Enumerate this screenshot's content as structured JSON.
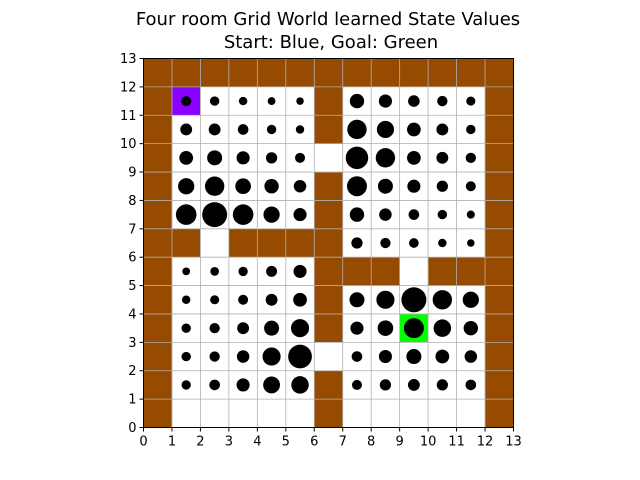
{
  "chart_data": {
    "type": "heatmap",
    "title_line1": "Four room Grid World learned State Values",
    "title_line2": "Start: Blue, Goal: Green",
    "xlim": [
      0,
      13
    ],
    "ylim": [
      0,
      13
    ],
    "xticks": [
      "0",
      "1",
      "2",
      "3",
      "4",
      "5",
      "6",
      "7",
      "8",
      "9",
      "10",
      "11",
      "12",
      "13"
    ],
    "yticks": [
      "0",
      "1",
      "2",
      "3",
      "4",
      "5",
      "6",
      "7",
      "8",
      "9",
      "10",
      "11",
      "12",
      "13"
    ],
    "grid": true,
    "colors": {
      "wall": "#964B00",
      "open": "#ffffff",
      "start": "#8B00FF",
      "goal": "#00FF00",
      "grid": "#b0b0b0",
      "value_marker": "#000000"
    },
    "start_cell": [
      1,
      11
    ],
    "goal_cell": [
      9,
      3
    ],
    "open_cells": [
      [
        1,
        11
      ],
      [
        2,
        11
      ],
      [
        3,
        11
      ],
      [
        4,
        11
      ],
      [
        5,
        11
      ],
      [
        7,
        11
      ],
      [
        8,
        11
      ],
      [
        9,
        11
      ],
      [
        10,
        11
      ],
      [
        11,
        11
      ],
      [
        1,
        10
      ],
      [
        2,
        10
      ],
      [
        3,
        10
      ],
      [
        4,
        10
      ],
      [
        5,
        10
      ],
      [
        7,
        10
      ],
      [
        8,
        10
      ],
      [
        9,
        10
      ],
      [
        10,
        10
      ],
      [
        11,
        10
      ],
      [
        1,
        9
      ],
      [
        2,
        9
      ],
      [
        3,
        9
      ],
      [
        4,
        9
      ],
      [
        5,
        9
      ],
      [
        6,
        9
      ],
      [
        7,
        9
      ],
      [
        8,
        9
      ],
      [
        9,
        9
      ],
      [
        10,
        9
      ],
      [
        11,
        9
      ],
      [
        1,
        8
      ],
      [
        2,
        8
      ],
      [
        3,
        8
      ],
      [
        4,
        8
      ],
      [
        5,
        8
      ],
      [
        7,
        8
      ],
      [
        8,
        8
      ],
      [
        9,
        8
      ],
      [
        10,
        8
      ],
      [
        11,
        8
      ],
      [
        1,
        7
      ],
      [
        2,
        7
      ],
      [
        3,
        7
      ],
      [
        4,
        7
      ],
      [
        5,
        7
      ],
      [
        7,
        7
      ],
      [
        8,
        7
      ],
      [
        9,
        7
      ],
      [
        10,
        7
      ],
      [
        11,
        7
      ],
      [
        7,
        6
      ],
      [
        8,
        6
      ],
      [
        9,
        6
      ],
      [
        10,
        6
      ],
      [
        11,
        6
      ],
      [
        2,
        6
      ],
      [
        1,
        5
      ],
      [
        2,
        5
      ],
      [
        3,
        5
      ],
      [
        4,
        5
      ],
      [
        5,
        5
      ],
      [
        9,
        5
      ],
      [
        1,
        4
      ],
      [
        2,
        4
      ],
      [
        3,
        4
      ],
      [
        4,
        4
      ],
      [
        5,
        4
      ],
      [
        7,
        4
      ],
      [
        8,
        4
      ],
      [
        9,
        4
      ],
      [
        10,
        4
      ],
      [
        11,
        4
      ],
      [
        1,
        3
      ],
      [
        2,
        3
      ],
      [
        3,
        3
      ],
      [
        4,
        3
      ],
      [
        5,
        3
      ],
      [
        7,
        3
      ],
      [
        8,
        3
      ],
      [
        9,
        3
      ],
      [
        10,
        3
      ],
      [
        11,
        3
      ],
      [
        1,
        2
      ],
      [
        2,
        2
      ],
      [
        3,
        2
      ],
      [
        4,
        2
      ],
      [
        5,
        2
      ],
      [
        6,
        2
      ],
      [
        7,
        2
      ],
      [
        8,
        2
      ],
      [
        9,
        2
      ],
      [
        10,
        2
      ],
      [
        11,
        2
      ],
      [
        1,
        1
      ],
      [
        2,
        1
      ],
      [
        3,
        1
      ],
      [
        4,
        1
      ],
      [
        5,
        1
      ],
      [
        7,
        1
      ],
      [
        8,
        1
      ],
      [
        9,
        1
      ],
      [
        10,
        1
      ],
      [
        11,
        1
      ],
      [
        1,
        0
      ],
      [
        2,
        0
      ],
      [
        3,
        0
      ],
      [
        4,
        0
      ],
      [
        5,
        0
      ],
      [
        7,
        0
      ],
      [
        8,
        0
      ],
      [
        9,
        0
      ],
      [
        10,
        0
      ],
      [
        11,
        0
      ]
    ],
    "state_values": [
      {
        "x": 1.5,
        "y": 11.5,
        "v": 0.32
      },
      {
        "x": 2.5,
        "y": 11.5,
        "v": 0.3
      },
      {
        "x": 3.5,
        "y": 11.5,
        "v": 0.27
      },
      {
        "x": 4.5,
        "y": 11.5,
        "v": 0.25
      },
      {
        "x": 5.5,
        "y": 11.5,
        "v": 0.24
      },
      {
        "x": 7.5,
        "y": 11.5,
        "v": 0.46
      },
      {
        "x": 8.5,
        "y": 11.5,
        "v": 0.42
      },
      {
        "x": 9.5,
        "y": 11.5,
        "v": 0.37
      },
      {
        "x": 10.5,
        "y": 11.5,
        "v": 0.33
      },
      {
        "x": 11.5,
        "y": 11.5,
        "v": 0.29
      },
      {
        "x": 1.5,
        "y": 10.5,
        "v": 0.38
      },
      {
        "x": 2.5,
        "y": 10.5,
        "v": 0.38
      },
      {
        "x": 3.5,
        "y": 10.5,
        "v": 0.34
      },
      {
        "x": 4.5,
        "y": 10.5,
        "v": 0.3
      },
      {
        "x": 5.5,
        "y": 10.5,
        "v": 0.27
      },
      {
        "x": 7.5,
        "y": 10.5,
        "v": 0.62
      },
      {
        "x": 8.5,
        "y": 10.5,
        "v": 0.55
      },
      {
        "x": 9.5,
        "y": 10.5,
        "v": 0.44
      },
      {
        "x": 10.5,
        "y": 10.5,
        "v": 0.38
      },
      {
        "x": 11.5,
        "y": 10.5,
        "v": 0.3
      },
      {
        "x": 1.5,
        "y": 9.5,
        "v": 0.44
      },
      {
        "x": 2.5,
        "y": 9.5,
        "v": 0.48
      },
      {
        "x": 3.5,
        "y": 9.5,
        "v": 0.42
      },
      {
        "x": 4.5,
        "y": 9.5,
        "v": 0.36
      },
      {
        "x": 5.5,
        "y": 9.5,
        "v": 0.32
      },
      {
        "x": 7.5,
        "y": 9.5,
        "v": 0.72
      },
      {
        "x": 8.5,
        "y": 9.5,
        "v": 0.62
      },
      {
        "x": 9.5,
        "y": 9.5,
        "v": 0.44
      },
      {
        "x": 10.5,
        "y": 9.5,
        "v": 0.38
      },
      {
        "x": 11.5,
        "y": 9.5,
        "v": 0.33
      },
      {
        "x": 1.5,
        "y": 8.5,
        "v": 0.52
      },
      {
        "x": 2.5,
        "y": 8.5,
        "v": 0.62
      },
      {
        "x": 3.5,
        "y": 8.5,
        "v": 0.5
      },
      {
        "x": 4.5,
        "y": 8.5,
        "v": 0.46
      },
      {
        "x": 5.5,
        "y": 8.5,
        "v": 0.4
      },
      {
        "x": 7.5,
        "y": 8.5,
        "v": 0.64
      },
      {
        "x": 8.5,
        "y": 8.5,
        "v": 0.48
      },
      {
        "x": 9.5,
        "y": 8.5,
        "v": 0.42
      },
      {
        "x": 10.5,
        "y": 8.5,
        "v": 0.36
      },
      {
        "x": 11.5,
        "y": 8.5,
        "v": 0.32
      },
      {
        "x": 1.5,
        "y": 7.5,
        "v": 0.66
      },
      {
        "x": 2.5,
        "y": 7.5,
        "v": 0.8
      },
      {
        "x": 3.5,
        "y": 7.5,
        "v": 0.66
      },
      {
        "x": 4.5,
        "y": 7.5,
        "v": 0.52
      },
      {
        "x": 5.5,
        "y": 7.5,
        "v": 0.42
      },
      {
        "x": 7.5,
        "y": 7.5,
        "v": 0.46
      },
      {
        "x": 8.5,
        "y": 7.5,
        "v": 0.4
      },
      {
        "x": 9.5,
        "y": 7.5,
        "v": 0.34
      },
      {
        "x": 10.5,
        "y": 7.5,
        "v": 0.3
      },
      {
        "x": 11.5,
        "y": 7.5,
        "v": 0.26
      },
      {
        "x": 7.5,
        "y": 6.5,
        "v": 0.36
      },
      {
        "x": 8.5,
        "y": 6.5,
        "v": 0.33
      },
      {
        "x": 9.5,
        "y": 6.5,
        "v": 0.31
      },
      {
        "x": 10.5,
        "y": 6.5,
        "v": 0.27
      },
      {
        "x": 11.5,
        "y": 6.5,
        "v": 0.24
      },
      {
        "x": 1.5,
        "y": 5.5,
        "v": 0.25
      },
      {
        "x": 2.5,
        "y": 5.5,
        "v": 0.28
      },
      {
        "x": 3.5,
        "y": 5.5,
        "v": 0.3
      },
      {
        "x": 4.5,
        "y": 5.5,
        "v": 0.35
      },
      {
        "x": 5.5,
        "y": 5.5,
        "v": 0.42
      },
      {
        "x": 1.5,
        "y": 4.5,
        "v": 0.27
      },
      {
        "x": 2.5,
        "y": 4.5,
        "v": 0.29
      },
      {
        "x": 3.5,
        "y": 4.5,
        "v": 0.32
      },
      {
        "x": 4.5,
        "y": 4.5,
        "v": 0.38
      },
      {
        "x": 5.5,
        "y": 4.5,
        "v": 0.44
      },
      {
        "x": 7.5,
        "y": 4.5,
        "v": 0.48
      },
      {
        "x": 8.5,
        "y": 4.5,
        "v": 0.58
      },
      {
        "x": 9.5,
        "y": 4.5,
        "v": 0.8
      },
      {
        "x": 10.5,
        "y": 4.5,
        "v": 0.62
      },
      {
        "x": 11.5,
        "y": 4.5,
        "v": 0.52
      },
      {
        "x": 1.5,
        "y": 3.5,
        "v": 0.3
      },
      {
        "x": 2.5,
        "y": 3.5,
        "v": 0.33
      },
      {
        "x": 3.5,
        "y": 3.5,
        "v": 0.38
      },
      {
        "x": 4.5,
        "y": 3.5,
        "v": 0.48
      },
      {
        "x": 5.5,
        "y": 3.5,
        "v": 0.58
      },
      {
        "x": 7.5,
        "y": 3.5,
        "v": 0.42
      },
      {
        "x": 8.5,
        "y": 3.5,
        "v": 0.5
      },
      {
        "x": 9.5,
        "y": 3.5,
        "v": 0.64
      },
      {
        "x": 10.5,
        "y": 3.5,
        "v": 0.56
      },
      {
        "x": 11.5,
        "y": 3.5,
        "v": 0.46
      },
      {
        "x": 1.5,
        "y": 2.5,
        "v": 0.3
      },
      {
        "x": 2.5,
        "y": 2.5,
        "v": 0.33
      },
      {
        "x": 3.5,
        "y": 2.5,
        "v": 0.4
      },
      {
        "x": 4.5,
        "y": 2.5,
        "v": 0.58
      },
      {
        "x": 5.5,
        "y": 2.5,
        "v": 0.76
      },
      {
        "x": 7.5,
        "y": 2.5,
        "v": 0.34
      },
      {
        "x": 8.5,
        "y": 2.5,
        "v": 0.42
      },
      {
        "x": 9.5,
        "y": 2.5,
        "v": 0.48
      },
      {
        "x": 10.5,
        "y": 2.5,
        "v": 0.44
      },
      {
        "x": 11.5,
        "y": 2.5,
        "v": 0.4
      },
      {
        "x": 1.5,
        "y": 1.5,
        "v": 0.3
      },
      {
        "x": 2.5,
        "y": 1.5,
        "v": 0.34
      },
      {
        "x": 3.5,
        "y": 1.5,
        "v": 0.42
      },
      {
        "x": 4.5,
        "y": 1.5,
        "v": 0.54
      },
      {
        "x": 5.5,
        "y": 1.5,
        "v": 0.56
      },
      {
        "x": 7.5,
        "y": 1.5,
        "v": 0.32
      },
      {
        "x": 8.5,
        "y": 1.5,
        "v": 0.36
      },
      {
        "x": 9.5,
        "y": 1.5,
        "v": 0.38
      },
      {
        "x": 10.5,
        "y": 1.5,
        "v": 0.36
      },
      {
        "x": 11.5,
        "y": 1.5,
        "v": 0.34
      }
    ]
  }
}
